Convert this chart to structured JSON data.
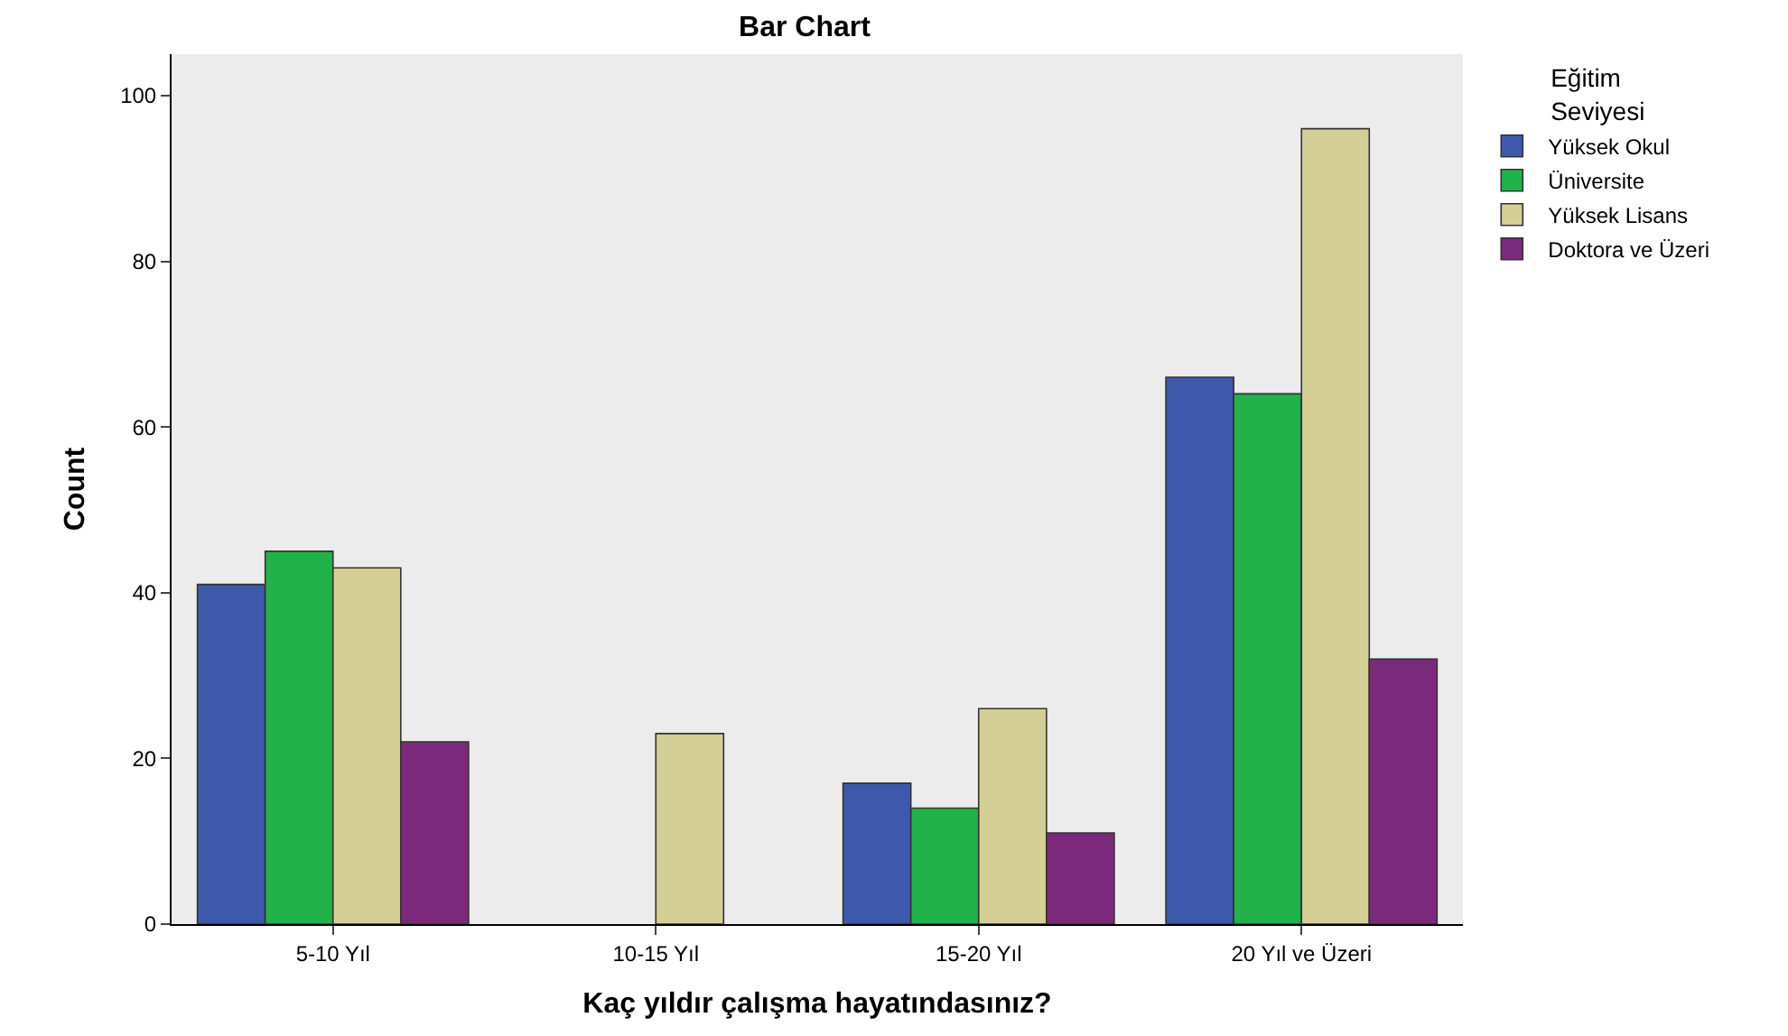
{
  "chart_data": {
    "type": "bar",
    "title": "Bar Chart",
    "xlabel": "Kaç yıldır çalışma hayatındasınız?",
    "ylabel": "Count",
    "legend_title": "Eğitim\nSeviyesi",
    "categories": [
      "5-10 Yıl",
      "10-15 Yıl",
      "15-20 Yıl",
      "20 Yıl ve Üzeri"
    ],
    "series": [
      {
        "name": "Yüksek Okul",
        "color": "#3e58ac",
        "values": [
          41,
          null,
          17,
          66
        ]
      },
      {
        "name": "Üniversite",
        "color": "#21b24a",
        "values": [
          45,
          null,
          14,
          64
        ]
      },
      {
        "name": "Yüksek Lisans",
        "color": "#d4cf94",
        "values": [
          43,
          23,
          26,
          96
        ]
      },
      {
        "name": "Doktora ve Üzeri",
        "color": "#7b2a7b",
        "values": [
          22,
          null,
          11,
          32
        ]
      }
    ],
    "ylim": [
      0,
      105
    ],
    "yticks": [
      0,
      20,
      40,
      60,
      80,
      100
    ],
    "grid": false,
    "legend": "top right"
  }
}
